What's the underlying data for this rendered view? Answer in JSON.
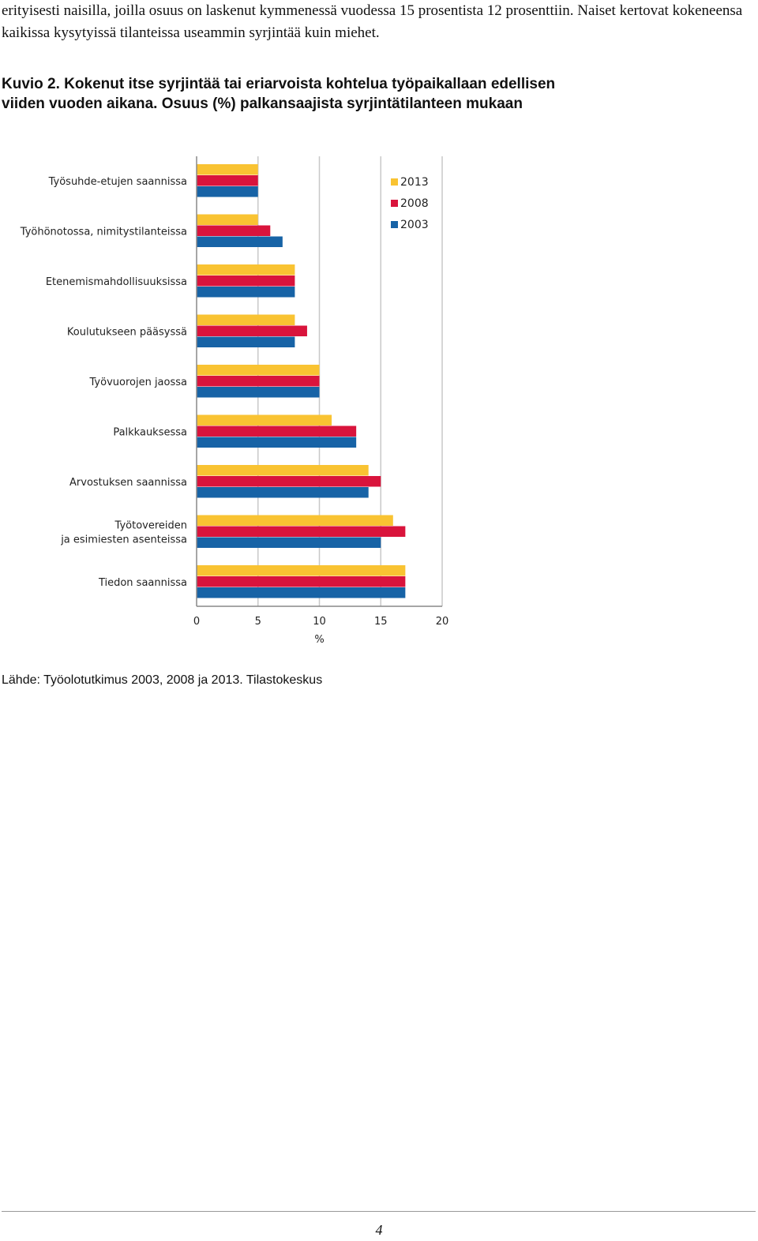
{
  "intro_text": "erityisesti naisilla, joilla osuus on laskenut kymmenessä vuodessa 15 prosentista 12 prosenttiin. Naiset kertovat kokeneensa kaikissa kysytyissä tilanteissa useammin syrjintää kuin miehet.",
  "figure_title": "Kuvio 2. Kokenut itse syrjintää tai eriarvoista kohtelua työpaikallaan edellisen viiden vuoden aikana. Osuus (%) palkansaajista syrjintätilanteen mukaan",
  "chart_data": {
    "type": "bar",
    "orientation": "horizontal",
    "categories": [
      [
        "Työsuhde-etujen saannissa"
      ],
      [
        "Työhönotossa, nimitystilanteissa"
      ],
      [
        "Etenemismahdollisuuksissa"
      ],
      [
        "Koulutukseen pääsyssä"
      ],
      [
        "Työvuorojen jaossa"
      ],
      [
        "Palkkauksessa"
      ],
      [
        "Arvostuksen saannissa"
      ],
      [
        "Työtovereiden",
        "ja esimiesten asenteissa"
      ],
      [
        "Tiedon saannissa"
      ]
    ],
    "series": [
      {
        "name": "2013",
        "color": "#f9c332",
        "values": [
          5,
          5,
          8,
          8,
          10,
          11,
          14,
          16,
          17
        ]
      },
      {
        "name": "2008",
        "color": "#d9143c",
        "values": [
          5,
          6,
          8,
          9,
          10,
          13,
          15,
          17,
          17
        ]
      },
      {
        "name": "2003",
        "color": "#1763a6",
        "values": [
          5,
          7,
          8,
          8,
          10,
          13,
          14,
          15,
          17
        ]
      }
    ],
    "xlabel": "%",
    "xlim": [
      0,
      20
    ],
    "xticks": [
      0,
      5,
      10,
      15,
      20
    ],
    "grid": true,
    "legend": "top-right"
  },
  "source_text": "Lähde: Työolotutkimus 2003, 2008 ja 2013. Tilastokeskus",
  "page_number": "4"
}
